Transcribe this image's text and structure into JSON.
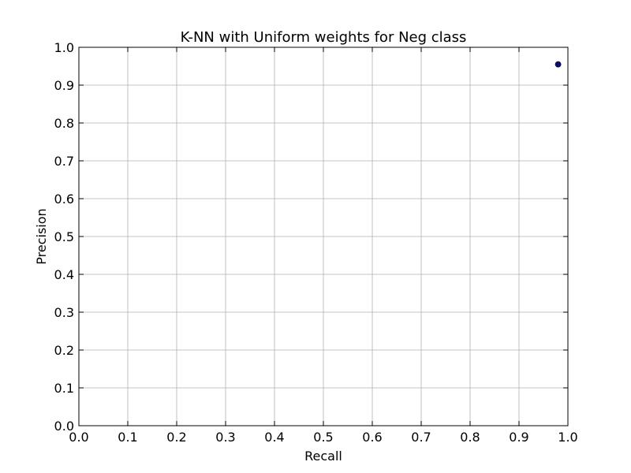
{
  "chart_data": {
    "type": "scatter",
    "title": "K-NN with Uniform weights for Neg class",
    "xlabel": "Recall",
    "ylabel": "Precision",
    "xlim": [
      0.0,
      1.0
    ],
    "ylim": [
      0.0,
      1.0
    ],
    "xticks": [
      "0.0",
      "0.1",
      "0.2",
      "0.3",
      "0.4",
      "0.5",
      "0.6",
      "0.7",
      "0.8",
      "0.9",
      "1.0"
    ],
    "yticks": [
      "0.0",
      "0.1",
      "0.2",
      "0.3",
      "0.4",
      "0.5",
      "0.6",
      "0.7",
      "0.8",
      "0.9",
      "1.0"
    ],
    "grid": true,
    "series": [
      {
        "color": "#0a0a7a",
        "points": [
          {
            "x": 0.98,
            "y": 0.955
          }
        ]
      }
    ]
  }
}
